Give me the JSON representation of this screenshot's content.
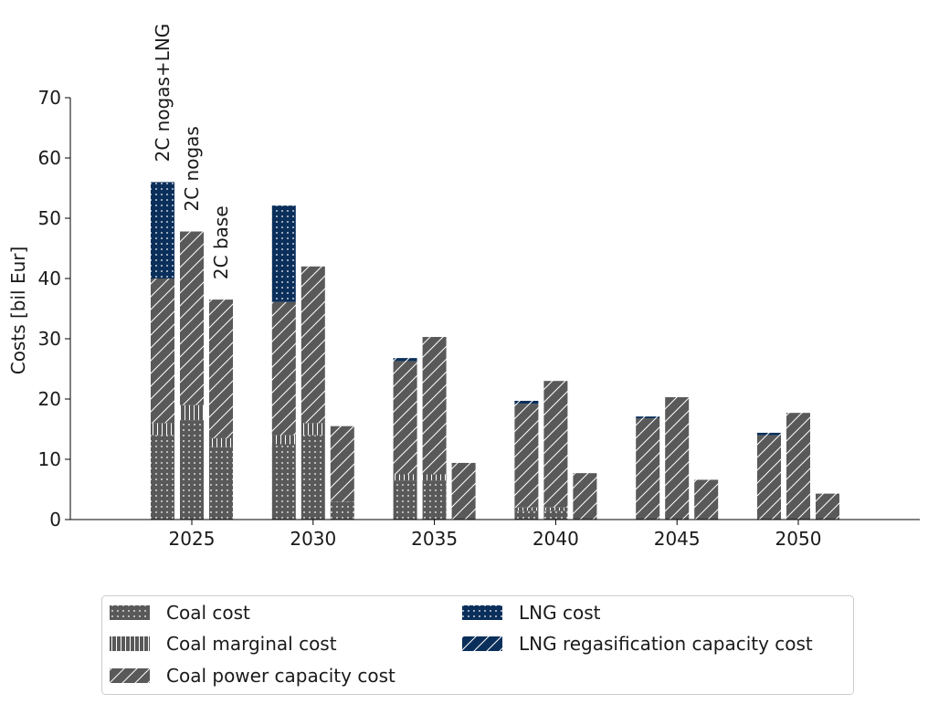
{
  "chart_data": {
    "type": "bar",
    "stacked": true,
    "grouped": true,
    "ylabel": "Costs [bil Eur]",
    "xlabel": "",
    "ylim": [
      0,
      70
    ],
    "yticks": [
      0,
      10,
      20,
      30,
      40,
      50,
      60,
      70
    ],
    "categories": [
      "2025",
      "2030",
      "2035",
      "2040",
      "2045",
      "2050"
    ],
    "scenarios": [
      "2C nogas+LNG",
      "2C nogas",
      "2C base"
    ],
    "scenario_labels_shown_at": "2025",
    "series": [
      {
        "name": "Coal cost",
        "color": "#595959",
        "pattern": "dots",
        "values": [
          [
            14.0,
            16.5,
            12.0
          ],
          [
            12.5,
            14.0,
            3.0
          ],
          [
            6.5,
            6.5,
            0.0
          ],
          [
            1.5,
            1.5,
            0.0
          ],
          [
            0.0,
            0.0,
            0.0
          ],
          [
            0.0,
            0.0,
            0.0
          ]
        ]
      },
      {
        "name": "Coal marginal cost",
        "color": "#595959",
        "pattern": "vertical",
        "values": [
          [
            2.0,
            2.5,
            1.5
          ],
          [
            1.5,
            2.0,
            0.0
          ],
          [
            1.0,
            1.0,
            0.0
          ],
          [
            0.5,
            0.5,
            0.0
          ],
          [
            0.0,
            0.0,
            0.0
          ],
          [
            0.0,
            0.0,
            0.0
          ]
        ]
      },
      {
        "name": "Coal power capacity cost",
        "color": "#595959",
        "pattern": "diagonal",
        "values": [
          [
            24.0,
            28.8,
            23.0
          ],
          [
            22.1,
            26.0,
            12.5
          ],
          [
            18.8,
            22.8,
            9.4
          ],
          [
            17.2,
            21.0,
            7.7
          ],
          [
            16.8,
            20.3,
            6.6
          ],
          [
            14.0,
            17.7,
            4.3
          ]
        ]
      },
      {
        "name": "LNG cost",
        "color": "#0b2f5b",
        "pattern": "dots",
        "values": [
          [
            16.0,
            0.0,
            0.0
          ],
          [
            16.0,
            0.0,
            0.0
          ],
          [
            0.0,
            0.0,
            0.0
          ],
          [
            0.0,
            0.0,
            0.0
          ],
          [
            0.0,
            0.0,
            0.0
          ],
          [
            0.0,
            0.0,
            0.0
          ]
        ]
      },
      {
        "name": "LNG regasification capacity cost",
        "color": "#0b2f5b",
        "pattern": "diagonal",
        "values": [
          [
            0.0,
            0.0,
            0.0
          ],
          [
            0.0,
            0.0,
            0.0
          ],
          [
            0.5,
            0.0,
            0.0
          ],
          [
            0.5,
            0.0,
            0.0
          ],
          [
            0.3,
            0.0,
            0.0
          ],
          [
            0.4,
            0.0,
            0.0
          ]
        ]
      }
    ],
    "legend": {
      "placement": "bottom",
      "columns": 2,
      "entries": [
        "Coal cost",
        "Coal marginal cost",
        "Coal power capacity cost",
        "LNG cost",
        "LNG regasification capacity cost"
      ]
    },
    "grid": false
  }
}
